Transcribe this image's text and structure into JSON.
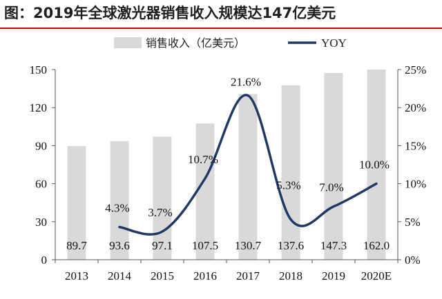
{
  "title": "图：2019年全球激光器销售收入规模达147亿美元",
  "colors": {
    "bar": "#d9d9d9",
    "line": "#1f3864",
    "rule": "#c00000"
  },
  "chart_data": {
    "type": "bar+line",
    "categories": [
      "2013",
      "2014",
      "2015",
      "2016",
      "2017",
      "2018",
      "2019",
      "2020E"
    ],
    "series": [
      {
        "name": "销售收入（亿美元）",
        "type": "bar",
        "axis": "left",
        "values": [
          89.7,
          93.6,
          97.1,
          107.5,
          130.7,
          137.6,
          147.3,
          162.0
        ],
        "labels": [
          "89.7",
          "93.6",
          "97.1",
          "107.5",
          "130.7",
          "137.6",
          "147.3",
          "162.0"
        ]
      },
      {
        "name": "YOY",
        "type": "line",
        "axis": "right",
        "values": [
          null,
          4.3,
          3.7,
          10.7,
          21.6,
          5.3,
          7.0,
          10.0
        ],
        "labels": [
          "",
          "4.3%",
          "3.7%",
          "10.7%",
          "21.6%",
          "5.3%",
          "7.0%",
          "10.0%"
        ]
      }
    ],
    "left_axis": {
      "ylim": [
        0,
        150
      ],
      "ticks": [
        "0",
        "30",
        "60",
        "90",
        "120",
        "150"
      ]
    },
    "right_axis": {
      "ylim": [
        0,
        25
      ],
      "ticks": [
        "0%",
        "5%",
        "10%",
        "15%",
        "20%",
        "25%"
      ]
    },
    "legend": {
      "placement": "top",
      "items": [
        "销售收入（亿美元）",
        "YOY"
      ]
    },
    "grid": false
  }
}
